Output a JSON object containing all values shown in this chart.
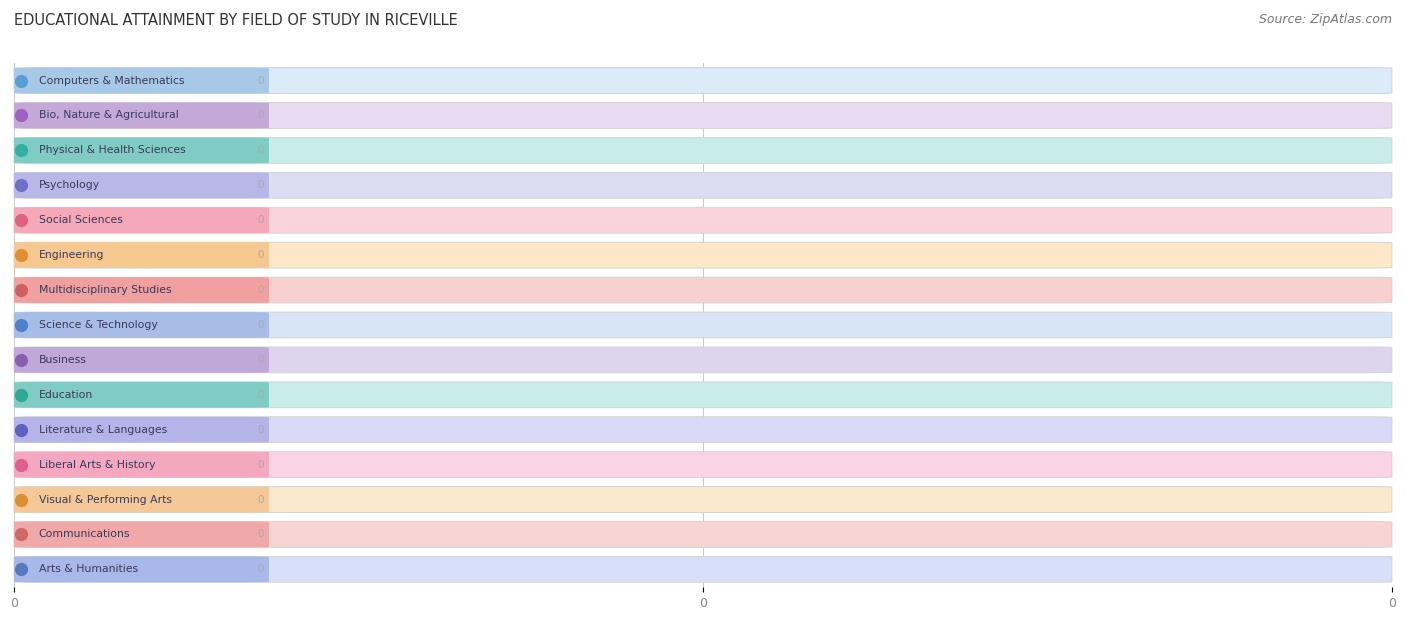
{
  "title": "EDUCATIONAL ATTAINMENT BY FIELD OF STUDY IN RICEVILLE",
  "source": "Source: ZipAtlas.com",
  "categories": [
    "Computers & Mathematics",
    "Bio, Nature & Agricultural",
    "Physical & Health Sciences",
    "Psychology",
    "Social Sciences",
    "Engineering",
    "Multidisciplinary Studies",
    "Science & Technology",
    "Business",
    "Education",
    "Literature & Languages",
    "Liberal Arts & History",
    "Visual & Performing Arts",
    "Communications",
    "Arts & Humanities"
  ],
  "values": [
    0,
    0,
    0,
    0,
    0,
    0,
    0,
    0,
    0,
    0,
    0,
    0,
    0,
    0,
    0
  ],
  "bar_colors": [
    "#a8c8e8",
    "#c4a8d8",
    "#80ccc4",
    "#b8b8e8",
    "#f4a8b8",
    "#f5c890",
    "#f0a0a0",
    "#a8bce8",
    "#c0a8d8",
    "#80ccc4",
    "#b4b4e8",
    "#f4a8c0",
    "#f5c898",
    "#f0a8a8",
    "#a8b8e8"
  ],
  "bar_pale_colors": [
    "#ddeaf8",
    "#e8daf0",
    "#c8ede8",
    "#dcdcf4",
    "#fad4dc",
    "#fce8c8",
    "#f8d0d0",
    "#d8e4f8",
    "#ddd4f0",
    "#c8ede8",
    "#dadaf8",
    "#fad4e4",
    "#fce8cc",
    "#f8d4d4",
    "#d8e0f8"
  ],
  "dot_colors": [
    "#5a9fd4",
    "#a060c0",
    "#30b0a0",
    "#7070c8",
    "#e06080",
    "#e09030",
    "#d06060",
    "#5080c8",
    "#8860b0",
    "#30a898",
    "#6060c0",
    "#e06090",
    "#d89030",
    "#d06868",
    "#5878c0"
  ],
  "background_color": "#ffffff",
  "title_fontsize": 10.5,
  "source_fontsize": 9,
  "xticks": [
    0,
    0.5,
    1.0
  ],
  "xtick_labels": [
    "0",
    "0",
    "0"
  ]
}
